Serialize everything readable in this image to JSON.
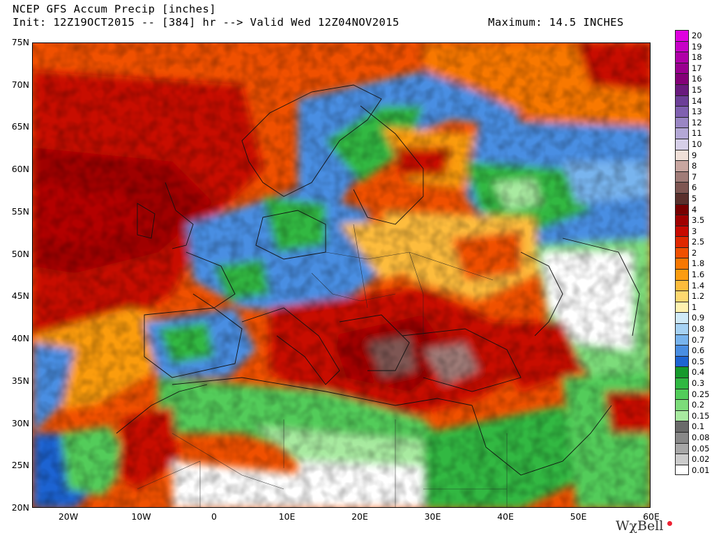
{
  "header": {
    "title": "NCEP GFS Accum Precip [inches]",
    "init": "Init: 12Z19OCT2015 -- [384] hr --> Valid Wed 12Z04NOV2015",
    "maximum": "Maximum: 14.5 INCHES"
  },
  "lat_labels": [
    "75N",
    "70N",
    "65N",
    "60N",
    "55N",
    "50N",
    "45N",
    "40N",
    "35N",
    "30N",
    "25N",
    "20N"
  ],
  "lon_labels": [
    "20W",
    "10W",
    "0",
    "10E",
    "20E",
    "30E",
    "40E",
    "50E",
    "60E"
  ],
  "legend": [
    {
      "label": "20",
      "color": "#e000e0"
    },
    {
      "label": "19",
      "color": "#c800c8"
    },
    {
      "label": "18",
      "color": "#b000a8"
    },
    {
      "label": "17",
      "color": "#9a0090"
    },
    {
      "label": "16",
      "color": "#840078"
    },
    {
      "label": "15",
      "color": "#6a1a7e"
    },
    {
      "label": "14",
      "color": "#6d3f98"
    },
    {
      "label": "13",
      "color": "#8060b0"
    },
    {
      "label": "12",
      "color": "#9a86c4"
    },
    {
      "label": "11",
      "color": "#b4a8d6"
    },
    {
      "label": "10",
      "color": "#d6cfe8"
    },
    {
      "label": "9",
      "color": "#f0e0d8"
    },
    {
      "label": "8",
      "color": "#c8a6a0"
    },
    {
      "label": "7",
      "color": "#a07c78"
    },
    {
      "label": "6",
      "color": "#7e5652"
    },
    {
      "label": "5",
      "color": "#5a302c"
    },
    {
      "label": "4",
      "color": "#780000"
    },
    {
      "label": "3.5",
      "color": "#a00000"
    },
    {
      "label": "3",
      "color": "#c80a00"
    },
    {
      "label": "2.5",
      "color": "#e02800"
    },
    {
      "label": "2",
      "color": "#f05000"
    },
    {
      "label": "1.8",
      "color": "#f87800"
    },
    {
      "label": "1.6",
      "color": "#fb9c10"
    },
    {
      "label": "1.4",
      "color": "#fdbc3c"
    },
    {
      "label": "1.2",
      "color": "#fed870"
    },
    {
      "label": "1",
      "color": "#fff2b0"
    },
    {
      "label": "0.9",
      "color": "#d0eaf8"
    },
    {
      "label": "0.8",
      "color": "#a6d2f4"
    },
    {
      "label": "0.7",
      "color": "#78b4ee"
    },
    {
      "label": "0.6",
      "color": "#4a8ee2"
    },
    {
      "label": "0.5",
      "color": "#1e64d2"
    },
    {
      "label": "0.4",
      "color": "#169a2c"
    },
    {
      "label": "0.3",
      "color": "#30b842"
    },
    {
      "label": "0.25",
      "color": "#52cc5a"
    },
    {
      "label": "0.2",
      "color": "#7cdc7a"
    },
    {
      "label": "0.15",
      "color": "#a8eaa0"
    },
    {
      "label": "0.1",
      "color": "#6a6a6a"
    },
    {
      "label": "0.08",
      "color": "#888888"
    },
    {
      "label": "0.05",
      "color": "#a8a8a8"
    },
    {
      "label": "0.02",
      "color": "#cccccc"
    },
    {
      "label": "0.01",
      "color": "#ffffff"
    }
  ],
  "brand": "WχBell"
}
